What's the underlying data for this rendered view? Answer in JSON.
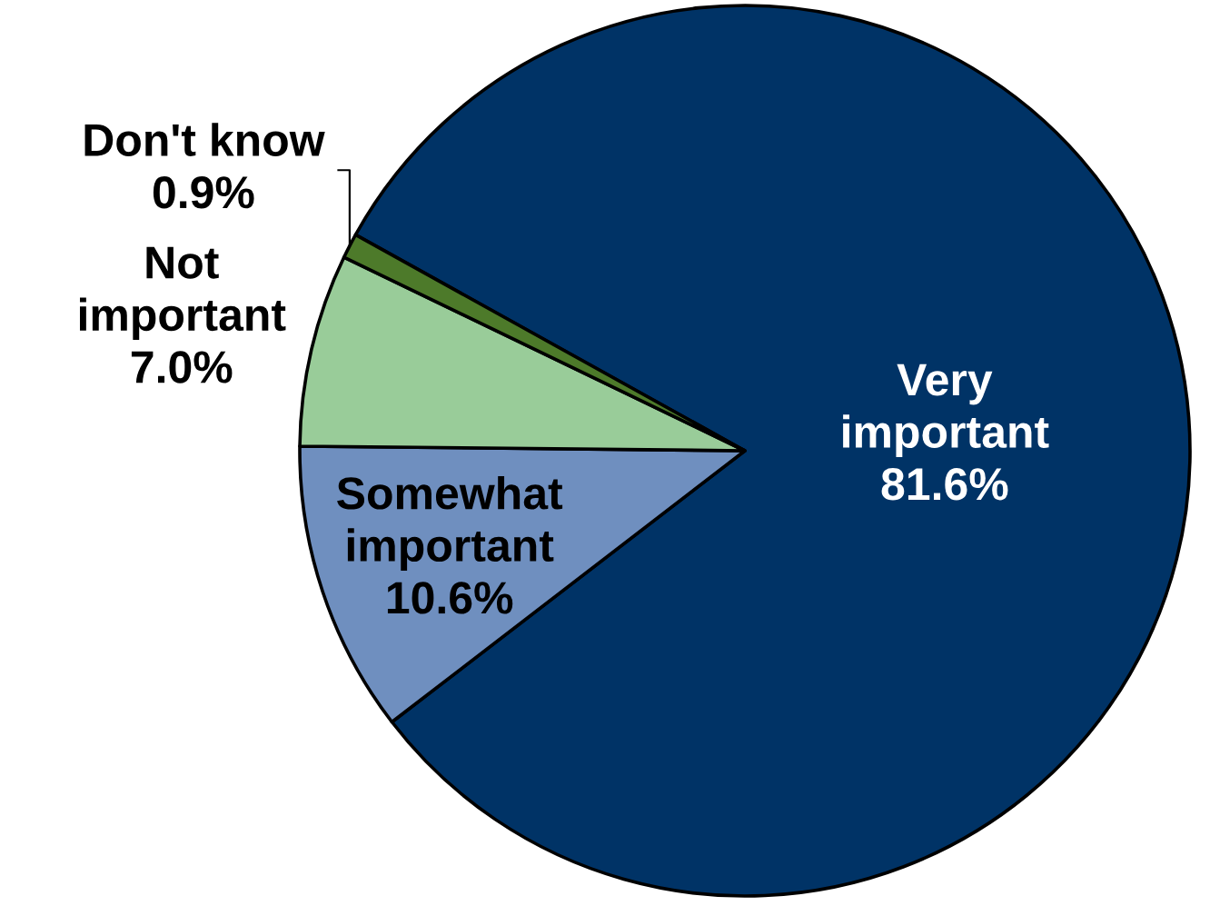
{
  "chart_data": {
    "type": "pie",
    "categories": [
      "Very important",
      "Somewhat important",
      "Not important",
      "Don't know"
    ],
    "values": [
      81.6,
      10.6,
      7.0,
      0.9
    ],
    "value_labels": [
      "81.6%",
      "10.6%",
      "7.0%",
      "0.9%"
    ],
    "colors": [
      "#003366",
      "#6f8fbf",
      "#99cc99",
      "#4d7a2a"
    ]
  }
}
